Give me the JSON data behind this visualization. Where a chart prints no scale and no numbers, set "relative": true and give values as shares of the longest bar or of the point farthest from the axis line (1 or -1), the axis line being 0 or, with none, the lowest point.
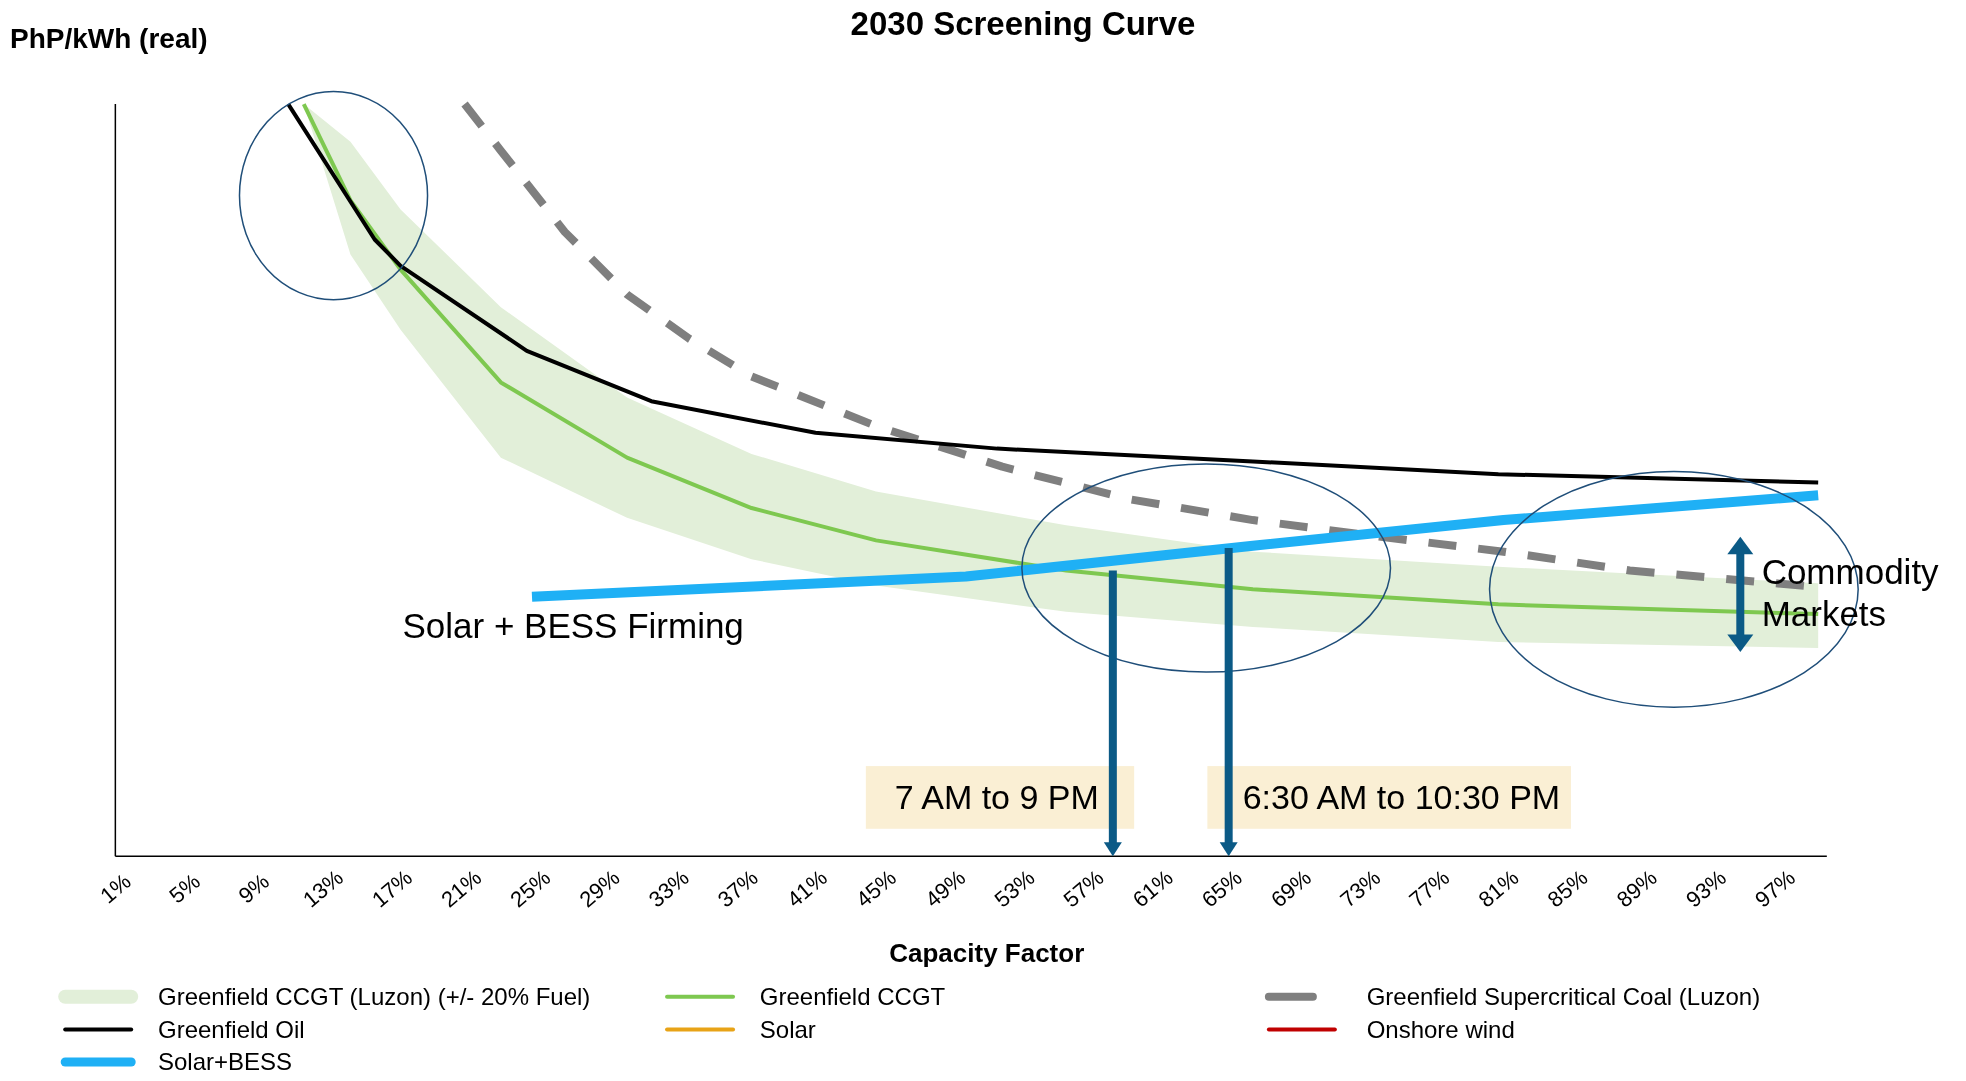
{
  "chart_data": {
    "type": "line",
    "title": "2030 Screening Curve",
    "ylabel": "PhP/kWh (real)",
    "xlabel": "Capacity Factor",
    "relative": true,
    "xlim": [
      1,
      100
    ],
    "xticks": [
      {
        "value": 1,
        "label": "1%"
      },
      {
        "value": 5,
        "label": "5%"
      },
      {
        "value": 9,
        "label": "9%"
      },
      {
        "value": 13,
        "label": "13%"
      },
      {
        "value": 17,
        "label": "17%"
      },
      {
        "value": 21,
        "label": "21%"
      },
      {
        "value": 25,
        "label": "25%"
      },
      {
        "value": 29,
        "label": "29%"
      },
      {
        "value": 33,
        "label": "33%"
      },
      {
        "value": 37,
        "label": "37%"
      },
      {
        "value": 41,
        "label": "41%"
      },
      {
        "value": 45,
        "label": "45%"
      },
      {
        "value": 49,
        "label": "49%"
      },
      {
        "value": 53,
        "label": "53%"
      },
      {
        "value": 57,
        "label": "57%"
      },
      {
        "value": 61,
        "label": "61%"
      },
      {
        "value": 65,
        "label": "65%"
      },
      {
        "value": 69,
        "label": "69%"
      },
      {
        "value": 73,
        "label": "73%"
      },
      {
        "value": 77,
        "label": "77%"
      },
      {
        "value": 81,
        "label": "81%"
      },
      {
        "value": 85,
        "label": "85%"
      },
      {
        "value": 89,
        "label": "89%"
      },
      {
        "value": 93,
        "label": "93%"
      },
      {
        "value": 97,
        "label": "97%"
      }
    ],
    "legend": "bottom",
    "grid": false,
    "series": [
      {
        "name": "Greenfield CCGT (Luzon) (+/- 20% Fuel)",
        "color": "#e2efd9",
        "x": [
          11.9,
          14.6,
          17.5,
          23.3,
          30.6,
          37.8,
          45,
          56,
          66.8,
          81,
          99.5
        ],
        "values": [
          null,
          null,
          null,
          null,
          null,
          null,
          null,
          null,
          null,
          null,
          null
        ],
        "lower": [
          1.0,
          0.8,
          0.7,
          0.53,
          0.45,
          0.395,
          0.36,
          0.325,
          0.305,
          0.285,
          0.277
        ],
        "upper": [
          1.0,
          0.95,
          0.86,
          0.73,
          0.61,
          0.535,
          0.485,
          0.44,
          0.405,
          0.385,
          0.363
        ]
      },
      {
        "name": "Greenfield CCGT",
        "color": "#7ec850",
        "x": [
          11.9,
          14.6,
          17.5,
          23.3,
          30.6,
          37.8,
          45,
          56,
          66.8,
          81,
          99.5
        ],
        "values": [
          1.0,
          0.872,
          0.78,
          0.63,
          0.53,
          0.463,
          0.42,
          0.38,
          0.355,
          0.335,
          0.322
        ]
      },
      {
        "name": "Greenfield Supercritical Coal (Luzon)",
        "color": "#7f7f7f",
        "line_style": "dashed",
        "x": [
          21.2,
          23.3,
          27,
          30.6,
          34.2,
          37.8,
          45,
          52.3,
          59.6,
          66.8,
          74.1,
          81.3,
          88.6,
          99.5
        ],
        "values": [
          1.0,
          0.938,
          0.83,
          0.747,
          0.688,
          0.638,
          0.572,
          0.518,
          0.475,
          0.447,
          0.425,
          0.405,
          0.38,
          0.358
        ]
      },
      {
        "name": "Greenfield Oil",
        "color": "#000000",
        "x": [
          11,
          16,
          17.5,
          24.8,
          32,
          41.5,
          52,
          66.8,
          81,
          99.5
        ],
        "values": [
          1.0,
          0.82,
          0.785,
          0.672,
          0.605,
          0.563,
          0.542,
          0.525,
          0.508,
          0.497
        ]
      },
      {
        "name": "Solar",
        "color": "#e8a317"
      },
      {
        "name": "Onshore wind",
        "color": "#c00000"
      },
      {
        "name": "Solar+BESS",
        "color": "#1fb0f5",
        "x": [
          25.1,
          50.2,
          66.8,
          81.3,
          99.5
        ],
        "values": [
          0.345,
          0.372,
          0.413,
          0.447,
          0.48
        ]
      }
    ],
    "annotations": [
      {
        "text": "7 AM to 9 PM",
        "x": 58.7,
        "y": 0.38
      },
      {
        "text": "6:30 AM to 10:30 PM",
        "x": 65.4,
        "y": 0.41
      },
      "Solar + BESS Firming",
      "Commodity Markets"
    ]
  }
}
